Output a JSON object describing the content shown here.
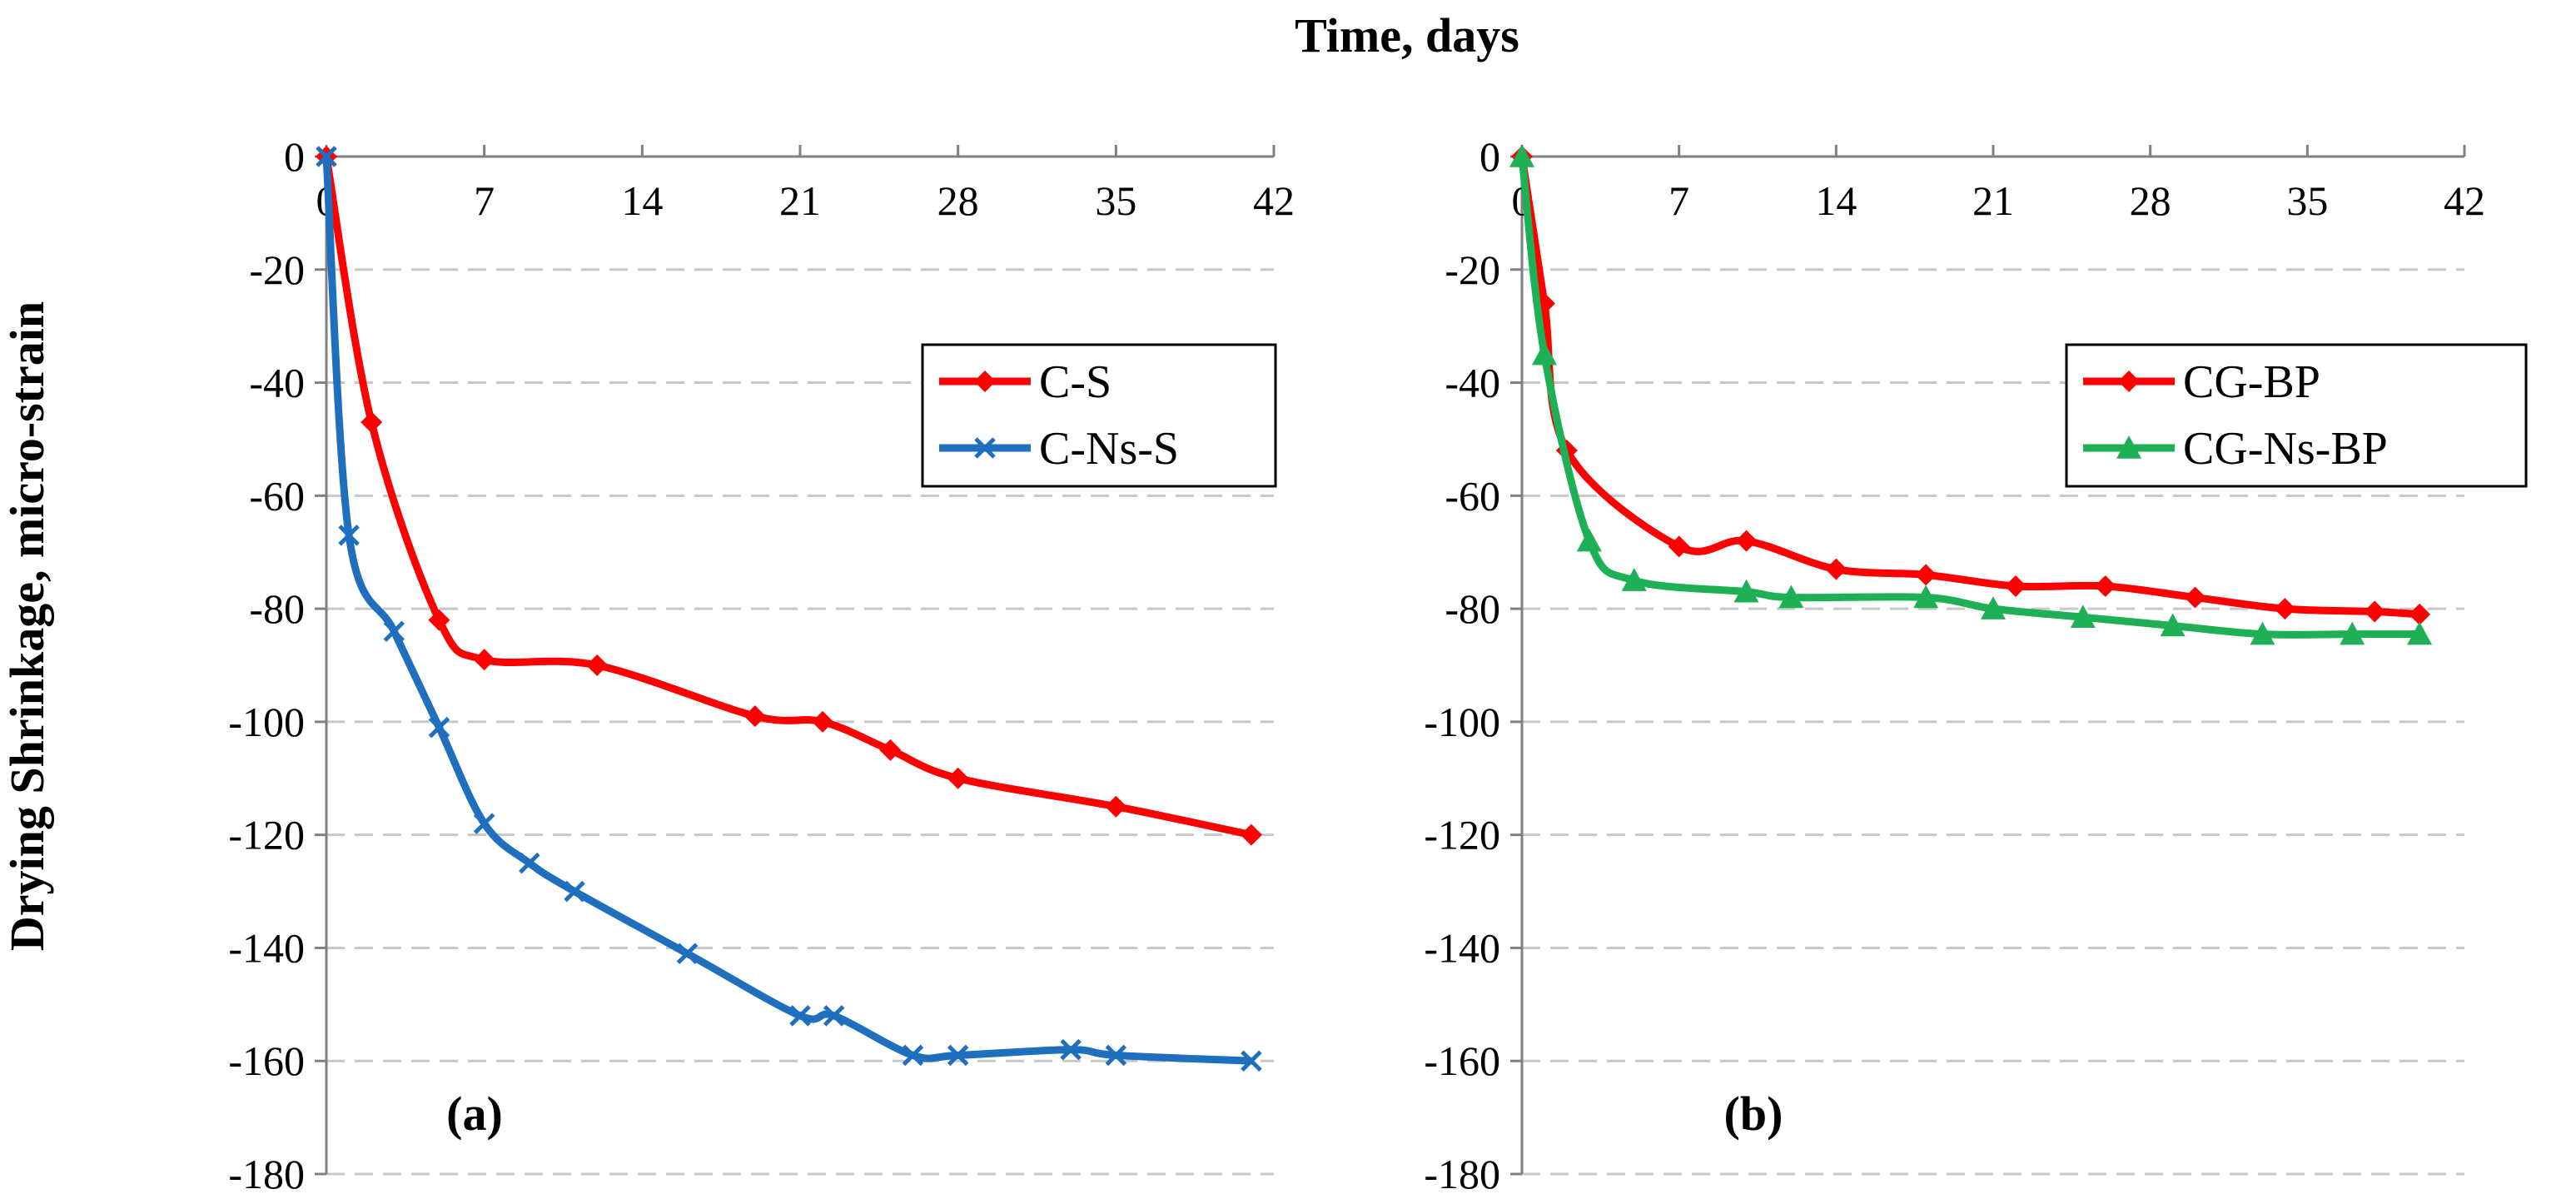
{
  "figure": {
    "x_title": "Time, days",
    "y_title": "Drying Shrinkage, micro-strain"
  },
  "chart_data": [
    {
      "type": "line",
      "panel_label": "(a)",
      "xlim": [
        0,
        42
      ],
      "ylim": [
        -180,
        0
      ],
      "x_ticks": [
        0,
        7,
        14,
        21,
        28,
        35,
        42
      ],
      "y_ticks": [
        0,
        -20,
        -40,
        -60,
        -80,
        -100,
        -120,
        -140,
        -160,
        -180
      ],
      "grid": true,
      "legend_position": "upper-right",
      "series": [
        {
          "name": "C-S",
          "color": "#ff0000",
          "marker": "diamond",
          "x": [
            0,
            2,
            5,
            7,
            12,
            19,
            22,
            25,
            28,
            35,
            41
          ],
          "y": [
            0,
            -47,
            -82,
            -89,
            -90,
            -99,
            -100,
            -105,
            -110,
            -115,
            -120
          ]
        },
        {
          "name": "C-Ns-S",
          "color": "#1f6fbf",
          "marker": "x",
          "x": [
            0,
            1,
            3,
            5,
            7,
            9,
            11,
            16,
            21,
            22.5,
            26,
            28,
            33,
            35,
            41
          ],
          "y": [
            0,
            -67,
            -84,
            -101,
            -118,
            -125,
            -130,
            -141,
            -152,
            -152,
            -159,
            -159,
            -158,
            -159,
            -160
          ]
        }
      ]
    },
    {
      "type": "line",
      "panel_label": "(b)",
      "xlim": [
        0,
        42
      ],
      "ylim": [
        -180,
        0
      ],
      "x_ticks": [
        0,
        7,
        14,
        21,
        28,
        35,
        42
      ],
      "y_ticks": [
        0,
        -20,
        -40,
        -60,
        -80,
        -100,
        -120,
        -140,
        -160,
        -180
      ],
      "grid": true,
      "legend_position": "upper-right",
      "series": [
        {
          "name": "CG-BP",
          "color": "#ff0000",
          "marker": "diamond",
          "x": [
            0,
            1,
            2,
            7,
            10,
            14,
            18,
            22,
            26,
            30,
            34,
            38,
            40
          ],
          "y": [
            0,
            -26,
            -52,
            -69,
            -68,
            -73,
            -74,
            -76,
            -76,
            -78,
            -80,
            -80.5,
            -81
          ]
        },
        {
          "name": "CG-Ns-BP",
          "color": "#1db054",
          "marker": "triangle",
          "x": [
            0,
            1,
            3,
            5,
            10,
            12,
            18,
            21,
            25,
            29,
            33,
            37,
            40
          ],
          "y": [
            0,
            -35,
            -68,
            -75,
            -77,
            -78,
            -78,
            -80,
            -81.5,
            -83,
            -84.5,
            -84.5,
            -84.5
          ]
        }
      ]
    }
  ]
}
